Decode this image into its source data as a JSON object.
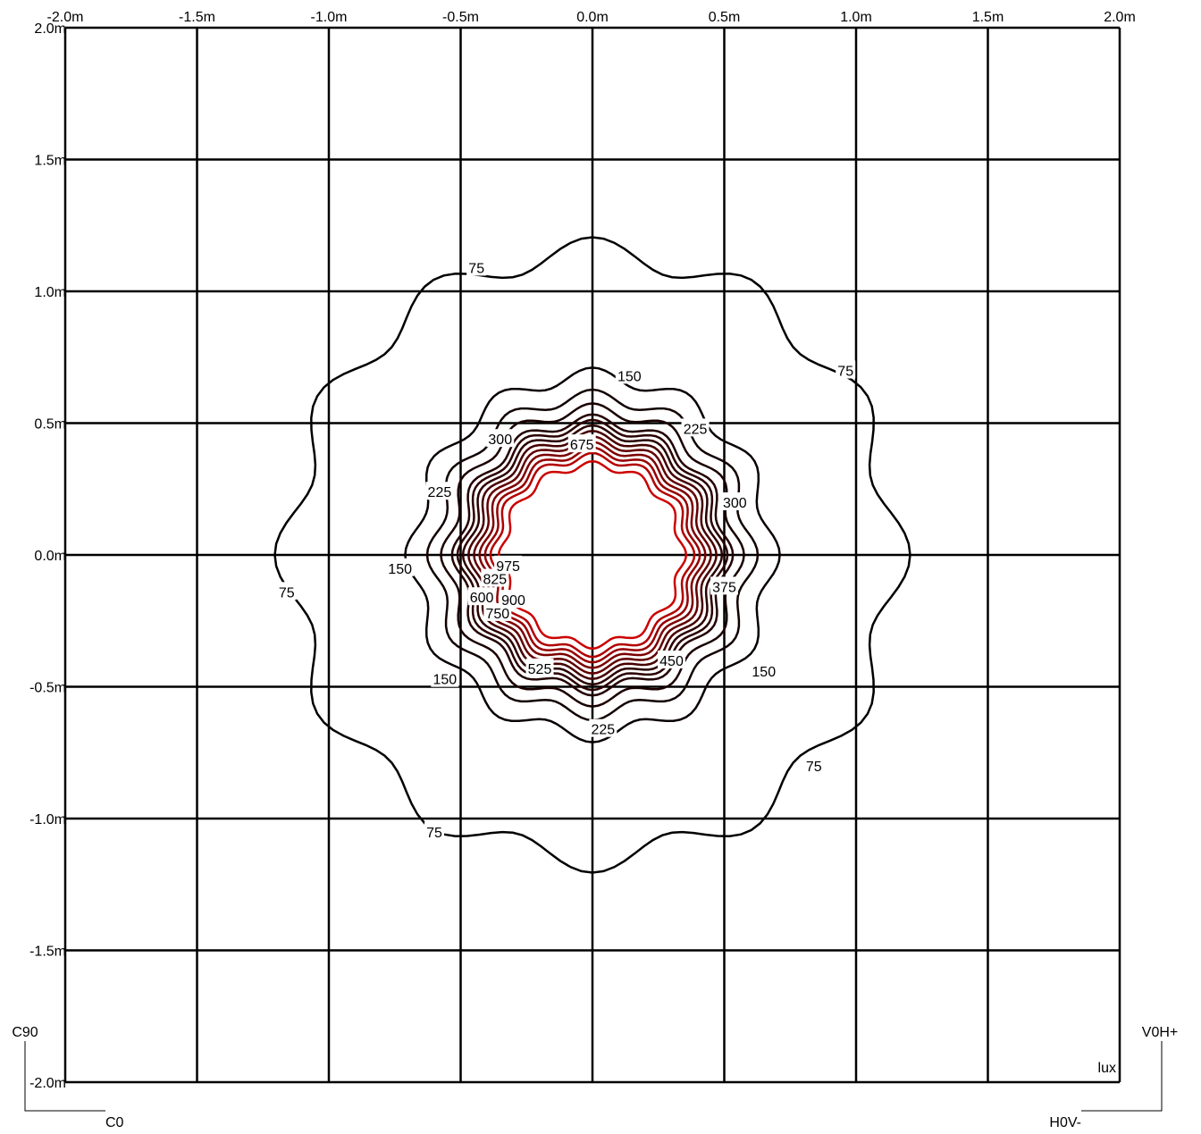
{
  "chart_data": {
    "type": "contour",
    "title": "",
    "unit_label": "lux",
    "xlim": [
      -2.0,
      2.0
    ],
    "ylim": [
      -2.0,
      2.0
    ],
    "grid": true,
    "x_ticks": [
      "-2.0m",
      "-1.5m",
      "-1.0m",
      "-0.5m",
      "0.0m",
      "0.5m",
      "1.0m",
      "1.5m",
      "2.0m"
    ],
    "y_ticks": [
      "2.0m",
      "1.5m",
      "1.0m",
      "0.5m",
      "0.0m",
      "-0.5m",
      "-1.0m",
      "-1.5m",
      "-2.0m"
    ],
    "levels": [
      75,
      150,
      225,
      300,
      375,
      450,
      525,
      600,
      675,
      750,
      825,
      900,
      975
    ],
    "approx_radius_m": {
      "75": 1.15,
      "150": 0.68,
      "225": 0.6,
      "300": 0.55,
      "375": 0.51,
      "450": 0.49,
      "525": 0.47,
      "600": 0.45,
      "675": 0.43,
      "750": 0.41,
      "825": 0.39,
      "900": 0.37,
      "975": 0.34
    },
    "level_labels": [
      {
        "text": "75",
        "x": -0.44,
        "y": 1.09
      },
      {
        "text": "75",
        "x": 0.96,
        "y": 0.7
      },
      {
        "text": "75",
        "x": -1.16,
        "y": -0.14
      },
      {
        "text": "75",
        "x": 0.84,
        "y": -0.8
      },
      {
        "text": "75",
        "x": -0.6,
        "y": -1.05
      },
      {
        "text": "150",
        "x": 0.14,
        "y": 0.68
      },
      {
        "text": "150",
        "x": -0.73,
        "y": -0.05
      },
      {
        "text": "150",
        "x": 0.65,
        "y": -0.44
      },
      {
        "text": "150",
        "x": -0.56,
        "y": -0.47
      },
      {
        "text": "225",
        "x": 0.39,
        "y": 0.48
      },
      {
        "text": "225",
        "x": -0.58,
        "y": 0.24
      },
      {
        "text": "225",
        "x": 0.04,
        "y": -0.66
      },
      {
        "text": "300",
        "x": -0.35,
        "y": 0.44
      },
      {
        "text": "300",
        "x": 0.54,
        "y": 0.2
      },
      {
        "text": "375",
        "x": 0.5,
        "y": -0.12
      },
      {
        "text": "450",
        "x": 0.3,
        "y": -0.4
      },
      {
        "text": "525",
        "x": -0.2,
        "y": -0.43
      },
      {
        "text": "600",
        "x": -0.42,
        "y": -0.16
      },
      {
        "text": "675",
        "x": -0.04,
        "y": 0.42
      },
      {
        "text": "750",
        "x": -0.36,
        "y": -0.22
      },
      {
        "text": "825",
        "x": -0.37,
        "y": -0.09
      },
      {
        "text": "900",
        "x": -0.3,
        "y": -0.17
      },
      {
        "text": "975",
        "x": -0.32,
        "y": -0.04
      }
    ],
    "colors": {
      "low": "#000000",
      "mid": "#2b0000",
      "high": "#cc0000",
      "grid": "#000000"
    }
  },
  "corners": {
    "top_left": "C90",
    "bottom_left": "C0",
    "top_right": "V0H+",
    "bottom_right": "H0V-"
  }
}
